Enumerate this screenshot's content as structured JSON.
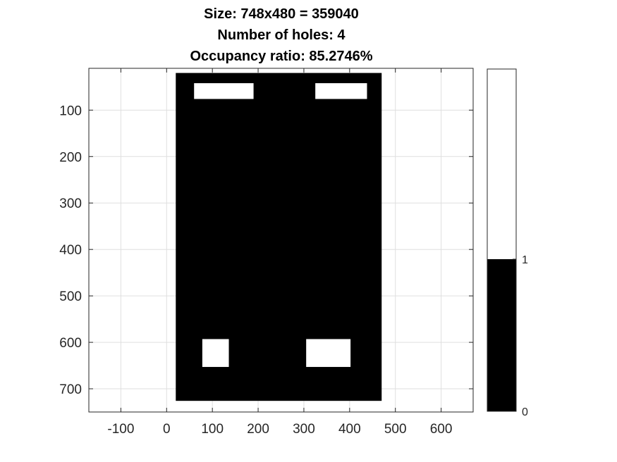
{
  "chart_data": {
    "type": "heatmap",
    "title_lines": [
      "Size: 748x480 = 359040",
      "Number of holes: 4",
      "Occupancy ratio: 85.2746%"
    ],
    "xlim": [
      -170,
      670
    ],
    "ylim": [
      750,
      10
    ],
    "y_direction": "reverse",
    "grid": true,
    "xticks": [
      -100,
      0,
      100,
      200,
      300,
      400,
      500,
      600
    ],
    "yticks": [
      100,
      200,
      300,
      400,
      500,
      600,
      700
    ],
    "occupied_region": {
      "x": [
        20,
        470
      ],
      "y": [
        20,
        726
      ],
      "value": 1,
      "color": "#000000"
    },
    "holes": [
      {
        "x": [
          60,
          190
        ],
        "y": [
          42,
          76
        ],
        "value": 0
      },
      {
        "x": [
          325,
          438
        ],
        "y": [
          42,
          76
        ],
        "value": 0
      },
      {
        "x": [
          78,
          136
        ],
        "y": [
          593,
          653
        ],
        "value": 0
      },
      {
        "x": [
          305,
          402
        ],
        "y": [
          593,
          653
        ],
        "value": 0
      }
    ],
    "colorbar": {
      "ticks": [
        {
          "label": "1",
          "value": 1
        },
        {
          "label": "0",
          "value": 0
        }
      ],
      "bands": [
        {
          "from": 0,
          "to": 1,
          "color": "#000000"
        },
        {
          "from": 1,
          "to": 2.25,
          "color": "#ffffff"
        }
      ],
      "range": [
        0,
        2.25
      ]
    },
    "colors": {
      "background": "#ffffff",
      "grid": "#dfdfdf",
      "axis": "#262626",
      "occupied": "#000000",
      "free": "#ffffff"
    }
  }
}
